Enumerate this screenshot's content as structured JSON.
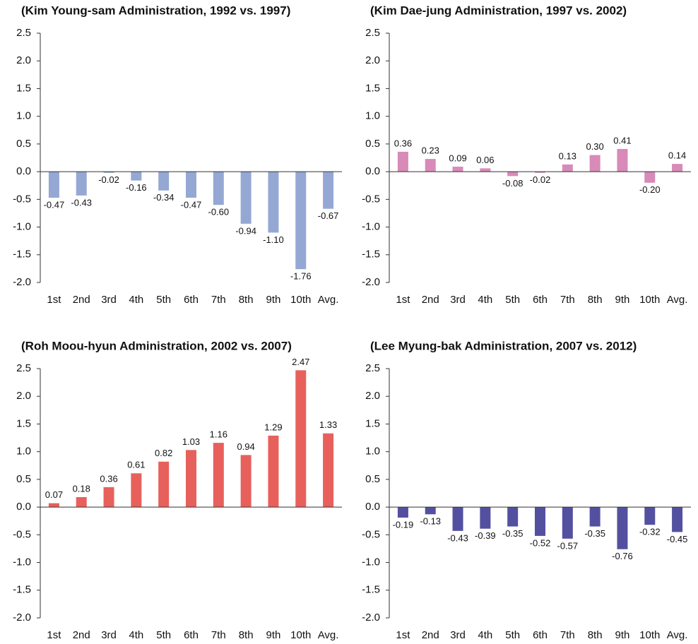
{
  "chart_data": [
    {
      "type": "bar",
      "title": "(Kim Young-sam Administration, 1992 vs. 1997)",
      "categories": [
        "1st",
        "2nd",
        "3rd",
        "4th",
        "5th",
        "6th",
        "7th",
        "8th",
        "9th",
        "10th",
        "Avg."
      ],
      "values": [
        -0.47,
        -0.43,
        -0.02,
        -0.16,
        -0.34,
        -0.47,
        -0.6,
        -0.94,
        -1.1,
        -1.76,
        -0.67
      ],
      "value_labels": [
        "-0.47",
        "-0.43",
        "-0.02",
        "-0.16",
        "-0.34",
        "-0.47",
        "-0.60",
        "-0.94",
        "-1.10",
        "-1.76",
        "-0.67"
      ],
      "color": "#95a8d4",
      "ylim": [
        -2.0,
        2.5
      ],
      "yticks": [
        {
          "value": -2.0,
          "label": "-2.0"
        },
        -1.5,
        {
          "value": -1.0,
          "label": "-1.0"
        },
        -0.5,
        {
          "value": 0,
          "label": "0.0"
        },
        0.5,
        {
          "value": 1.0,
          "label": "1.0"
        },
        1.5,
        {
          "value": 2.0,
          "label": "2.0"
        },
        2.5
      ]
    },
    {
      "type": "bar",
      "title": "(Kim Dae-jung Administration, 1997 vs. 2002)",
      "categories": [
        "1st",
        "2nd",
        "3rd",
        "4th",
        "5th",
        "6th",
        "7th",
        "8th",
        "9th",
        "10th",
        "Avg."
      ],
      "values": [
        0.36,
        0.23,
        0.09,
        0.06,
        -0.08,
        -0.02,
        0.13,
        0.3,
        0.41,
        -0.2,
        0.14
      ],
      "value_labels": [
        "0.36",
        "0.23",
        "0.09",
        "0.06",
        "-0.08",
        "-0.02",
        "0.13",
        "0.30",
        "0.41",
        "-0.20",
        "0.14"
      ],
      "color": "#d88ab8",
      "ylim": [
        -2.0,
        2.5
      ],
      "yticks": [
        {
          "value": -2.0,
          "label": "-2.0"
        },
        -1.5,
        {
          "value": -1.0,
          "label": "-1.0"
        },
        -0.5,
        {
          "value": 0,
          "label": "0.0"
        },
        0.5,
        {
          "value": 1.0,
          "label": "1.0"
        },
        1.5,
        {
          "value": 2.0,
          "label": "2.0"
        },
        2.5
      ]
    },
    {
      "type": "bar",
      "title": "(Roh Moou-hyun Administration, 2002 vs. 2007)",
      "categories": [
        "1st",
        "2nd",
        "3rd",
        "4th",
        "5th",
        "6th",
        "7th",
        "8th",
        "9th",
        "10th",
        "Avg."
      ],
      "values": [
        0.07,
        0.18,
        0.36,
        0.61,
        0.82,
        1.03,
        1.16,
        0.94,
        1.29,
        2.47,
        1.33
      ],
      "value_labels": [
        "0.07",
        "0.18",
        "0.36",
        "0.61",
        "0.82",
        "1.03",
        "1.16",
        "0.94",
        "1.29",
        "2.47",
        "1.33"
      ],
      "color": "#e8605c",
      "ylim": [
        -2.0,
        2.5
      ],
      "yticks": [
        {
          "value": -2.0,
          "label": "-2.0"
        },
        -1.5,
        {
          "value": -1.0,
          "label": "-1.0"
        },
        -0.5,
        {
          "value": 0,
          "label": "0.0"
        },
        0.5,
        {
          "value": 1.0,
          "label": "1.0"
        },
        1.5,
        {
          "value": 2.0,
          "label": "2.0"
        },
        2.5
      ]
    },
    {
      "type": "bar",
      "title": "(Lee Myung-bak Administration, 2007 vs. 2012)",
      "categories": [
        "1st",
        "2nd",
        "3rd",
        "4th",
        "5th",
        "6th",
        "7th",
        "8th",
        "9th",
        "10th",
        "Avg."
      ],
      "values": [
        -0.19,
        -0.13,
        -0.43,
        -0.39,
        -0.35,
        -0.52,
        -0.57,
        -0.35,
        -0.76,
        -0.32,
        -0.45
      ],
      "value_labels": [
        "-0.19",
        "-0.13",
        "-0.43",
        "-0.39",
        "-0.35",
        "-0.52",
        "-0.57",
        "-0.35",
        "-0.76",
        "-0.32",
        "-0.45"
      ],
      "color": "#5450a0",
      "ylim": [
        -2.0,
        2.5
      ],
      "yticks": [
        {
          "value": -2.0,
          "label": "-2.0"
        },
        -1.5,
        {
          "value": -1.0,
          "label": "-1.0"
        },
        -0.5,
        {
          "value": 0,
          "label": "0.0"
        },
        0.5,
        {
          "value": 1.0,
          "label": "1.0"
        },
        1.5,
        {
          "value": 2.0,
          "label": "2.0"
        },
        2.5
      ]
    }
  ]
}
